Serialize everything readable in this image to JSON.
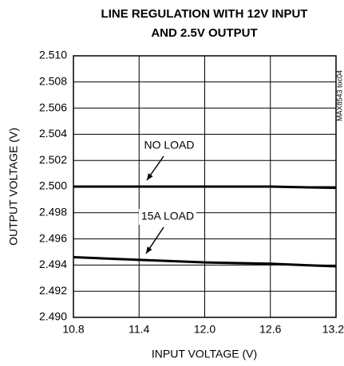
{
  "chart_data": {
    "type": "line",
    "title": "LINE REGULATION WITH 12V INPUT",
    "subtitle": "AND 2.5V OUTPUT",
    "x_label": "INPUT VOLTAGE (V)",
    "y_label": "OUTPUT VOLTAGE (V)",
    "note": "MAX8543 toc04",
    "annotations": [
      "NO LOAD",
      "15A LOAD"
    ],
    "series": [
      {
        "name": "NO LOAD",
        "color": "#000000",
        "x": [
          10.8,
          11.4,
          12.0,
          12.6,
          13.2
        ],
        "values": [
          2.5,
          2.5,
          2.5,
          2.5,
          2.4999
        ]
      },
      {
        "name": "15A LOAD",
        "color": "#000000",
        "x": [
          10.8,
          11.4,
          12.0,
          12.6,
          13.2
        ],
        "values": [
          2.4946,
          2.4944,
          2.4942,
          2.4941,
          2.4939
        ]
      }
    ],
    "xlim": [
      10.8,
      13.2
    ],
    "xticks": [
      10.8,
      11.4,
      {
        "value": 12.0,
        "label": "12.0"
      },
      12.6,
      13.2
    ],
    "ylim": [
      2.49,
      2.51
    ],
    "yticks": [
      {
        "value": 2.49,
        "label": "2.490"
      },
      {
        "value": 2.492,
        "label": "2.492"
      },
      {
        "value": 2.494,
        "label": "2.494"
      },
      {
        "value": 2.496,
        "label": "2.496"
      },
      {
        "value": 2.498,
        "label": "2.498"
      },
      {
        "value": 2.5,
        "label": "2.500"
      },
      {
        "value": 2.502,
        "label": "2.502"
      },
      {
        "value": 2.504,
        "label": "2.504"
      },
      {
        "value": 2.506,
        "label": "2.506"
      },
      {
        "value": 2.508,
        "label": "2.508"
      },
      {
        "value": 2.51,
        "label": "2.510"
      }
    ],
    "grid": true
  }
}
